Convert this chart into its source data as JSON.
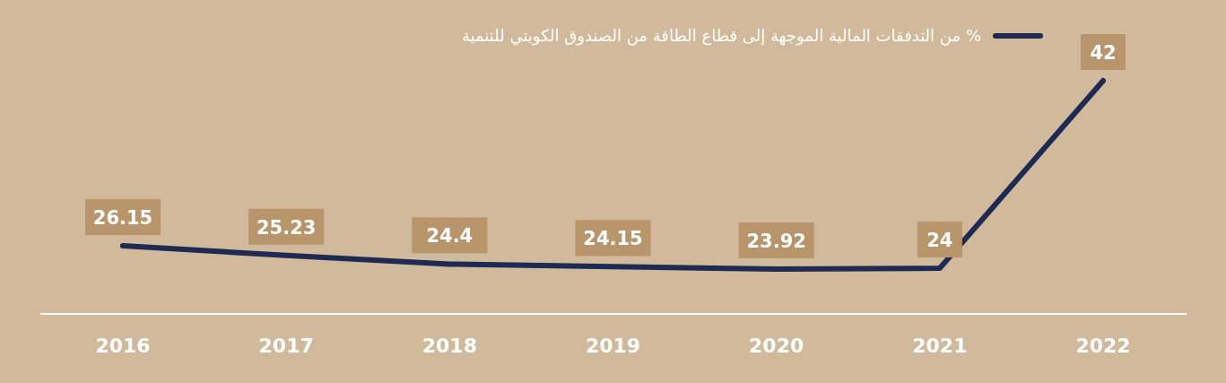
{
  "chart_data": {
    "type": "line",
    "categories": [
      "2016",
      "2017",
      "2018",
      "2019",
      "2020",
      "2021",
      "2022"
    ],
    "series": [
      {
        "name": "% من التدفقات المالية الموجهة إلى قطاع الطاقة من الصندوق الكويتي للتنمية",
        "color": "#1f2a52",
        "values": [
          26.15,
          25.23,
          24.4,
          24.15,
          23.92,
          24,
          42
        ]
      }
    ],
    "data_labels": true,
    "legend": "top right"
  }
}
